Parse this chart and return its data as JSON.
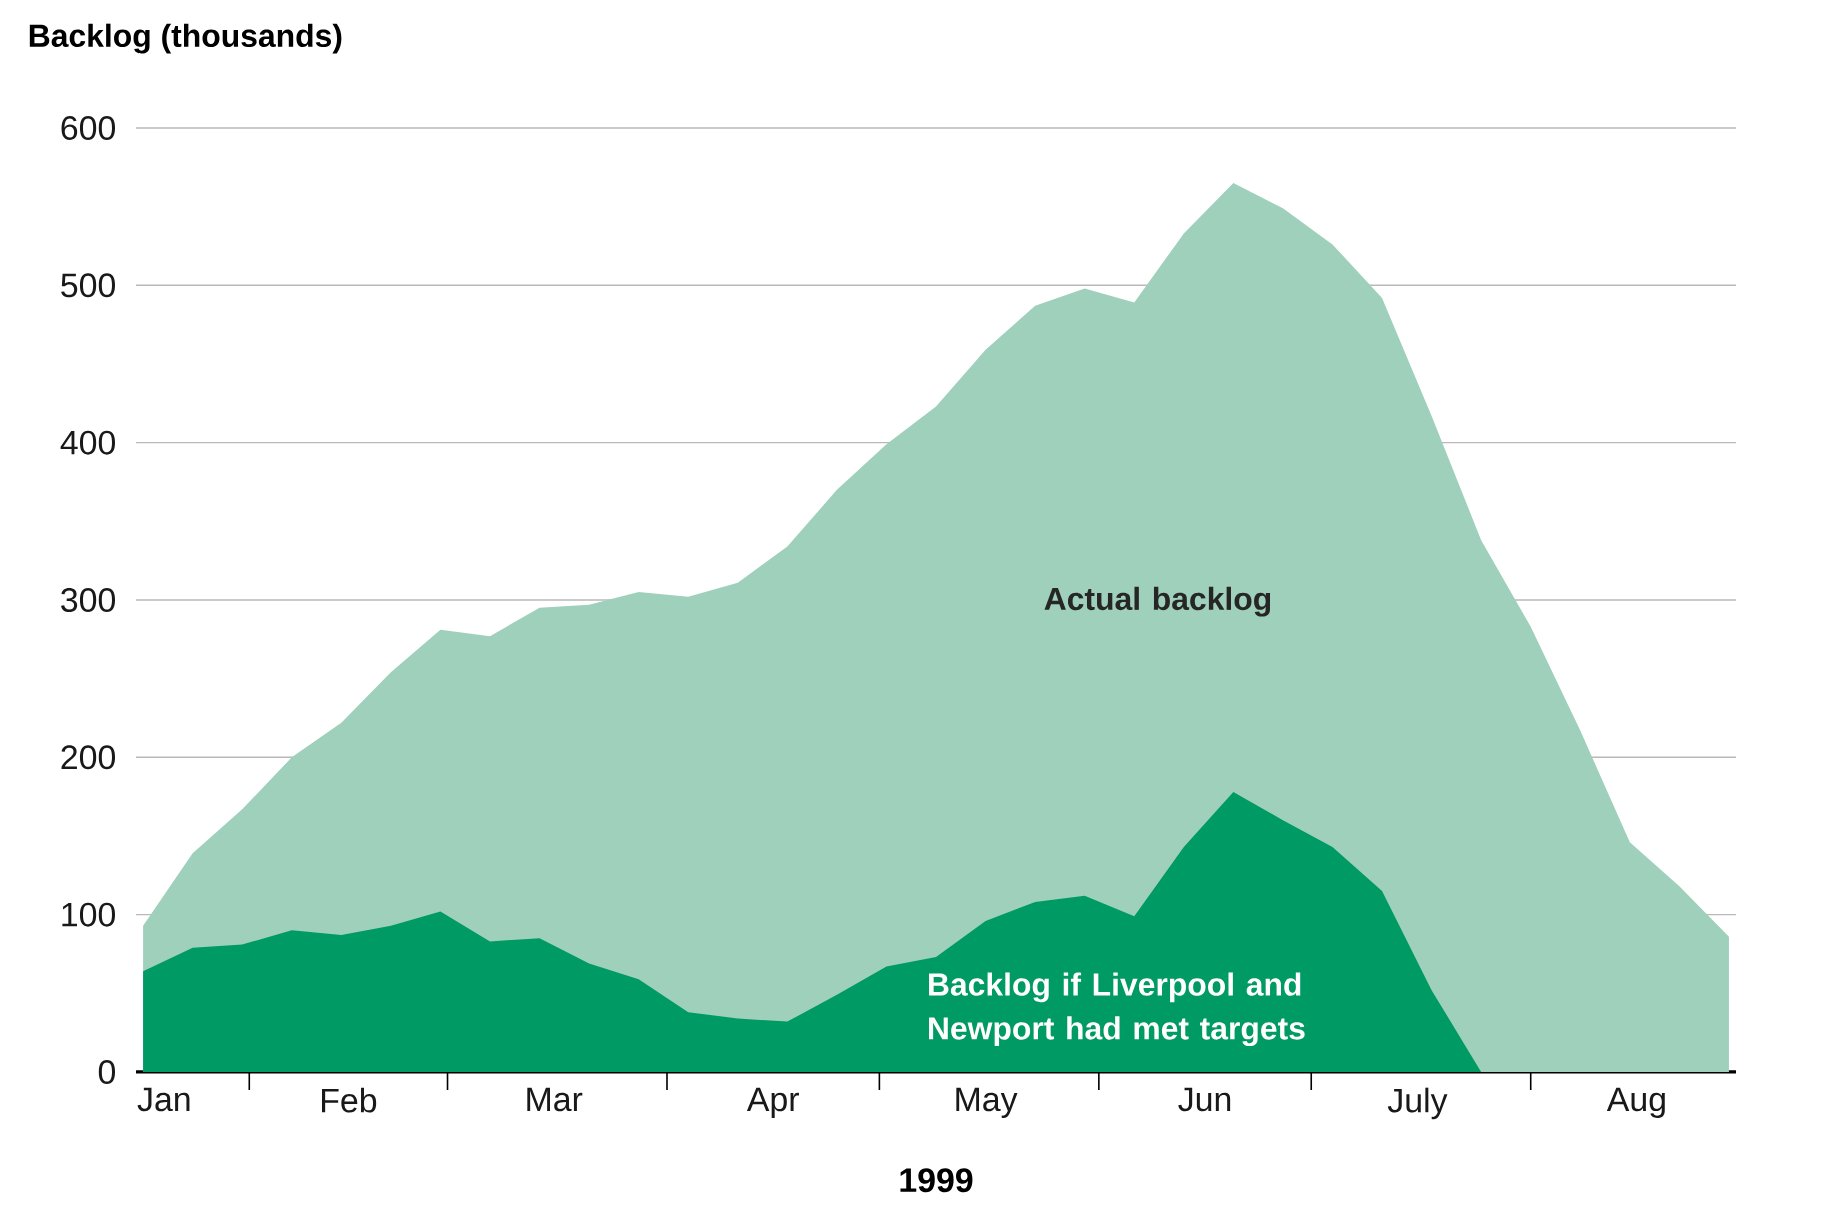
{
  "chart_data": {
    "type": "area",
    "xlabel": "1999",
    "ylabel": "Backlog (thousands)",
    "x": [
      "1999-01-17",
      "1999-01-24",
      "1999-01-31",
      "1999-02-07",
      "1999-02-14",
      "1999-02-21",
      "1999-02-28",
      "1999-03-07",
      "1999-03-14",
      "1999-03-21",
      "1999-03-28",
      "1999-04-04",
      "1999-04-11",
      "1999-04-18",
      "1999-04-25",
      "1999-05-02",
      "1999-05-09",
      "1999-05-16",
      "1999-05-23",
      "1999-05-30",
      "1999-06-06",
      "1999-06-13",
      "1999-06-20",
      "1999-06-27",
      "1999-07-04",
      "1999-07-11",
      "1999-07-18",
      "1999-07-25",
      "1999-08-01",
      "1999-08-08",
      "1999-08-15",
      "1999-08-22",
      "1999-08-29"
    ],
    "series": [
      {
        "name": "Actual backlog",
        "color": "#9fd0bc",
        "values": [
          93,
          139,
          167,
          200,
          222,
          254,
          281,
          277,
          295,
          297,
          305,
          302,
          311,
          334,
          370,
          399,
          423,
          459,
          487,
          498,
          489,
          533,
          565,
          549,
          526,
          492,
          417,
          338,
          283,
          217,
          146,
          118,
          86
        ]
      },
      {
        "name": "Backlog if Liverpool and Newport had met targets",
        "color": "#009a64",
        "values": [
          64,
          79,
          81,
          90,
          87,
          93,
          102,
          83,
          85,
          69,
          59,
          38,
          34,
          32,
          49,
          67,
          73,
          96,
          108,
          112,
          99,
          143,
          178,
          160,
          143,
          115,
          52,
          0,
          null,
          null,
          null,
          null,
          null
        ]
      }
    ],
    "xlim": [
      "1999-01-16",
      "1999-08-30"
    ],
    "xticks": [
      {
        "value": "1999-02-01",
        "label": null
      },
      {
        "value": "1999-03-01",
        "label": null
      },
      {
        "value": "1999-04-01",
        "label": null
      },
      {
        "value": "1999-05-01",
        "label": null
      },
      {
        "value": "1999-06-01",
        "label": null
      },
      {
        "value": "1999-07-01",
        "label": null
      },
      {
        "value": "1999-08-01",
        "label": null
      },
      {
        "value": "1999-01-20",
        "label": "Jan"
      },
      {
        "value": "1999-02-15",
        "label": "Feb"
      },
      {
        "value": "1999-03-16",
        "label": "Mar"
      },
      {
        "value": "1999-04-16",
        "label": "Apr"
      },
      {
        "value": "1999-05-16",
        "label": "May"
      },
      {
        "value": "1999-06-16",
        "label": "Jun"
      },
      {
        "value": "1999-07-16",
        "label": "July"
      },
      {
        "value": "1999-08-16",
        "label": "Aug"
      }
    ],
    "ylim": [
      0,
      600
    ],
    "yticks": [
      0,
      100,
      200,
      300,
      400,
      500,
      600
    ],
    "grid": "y"
  }
}
